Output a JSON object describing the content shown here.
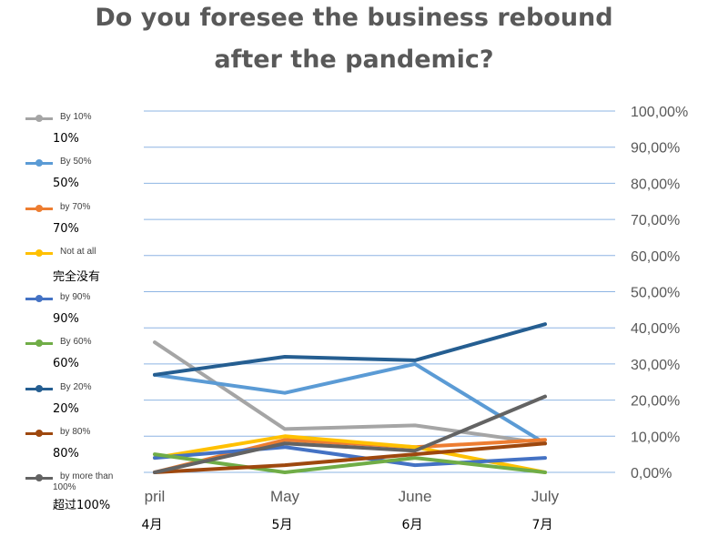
{
  "chart_data": {
    "type": "line",
    "title_lines": [
      "Do you foresee the business rebound",
      "after the pandemic?"
    ],
    "categories": [
      "pril",
      "May",
      "June",
      "July"
    ],
    "category_sublabels": [
      "4月",
      "5月",
      "6月",
      "7月"
    ],
    "y_axis_position": "right",
    "ylim": [
      0,
      1
    ],
    "yticks": [
      0,
      0.1,
      0.2,
      0.3,
      0.4,
      0.5,
      0.6,
      0.7,
      0.8,
      0.9,
      1.0
    ],
    "ytick_labels": [
      "0,00%",
      "10,00%",
      "20,00%",
      "30,00%",
      "40,00%",
      "50,00%",
      "60,00%",
      "70,00%",
      "80,00%",
      "90,00%",
      "100,00%"
    ],
    "grid": true,
    "legend_position": "left",
    "series": [
      {
        "name": "By 10%",
        "sublabel": "10%",
        "color": "#A5A5A5",
        "values": [
          0.36,
          0.12,
          0.13,
          0.08
        ]
      },
      {
        "name": "By 50%",
        "sublabel": "50%",
        "color": "#5B9BD5",
        "values": [
          0.27,
          0.22,
          0.3,
          0.08
        ]
      },
      {
        "name": "by 70%",
        "sublabel": "70%",
        "color": "#ED7D31",
        "values": [
          0.0,
          0.09,
          0.07,
          0.09
        ]
      },
      {
        "name": "Not at all",
        "sublabel": "完全没有",
        "color": "#FFC000",
        "values": [
          0.04,
          0.1,
          0.07,
          0.0
        ]
      },
      {
        "name": "by 90%",
        "sublabel": "90%",
        "color": "#4472C4",
        "values": [
          0.04,
          0.07,
          0.02,
          0.04
        ]
      },
      {
        "name": "By 60%",
        "sublabel": "60%",
        "color": "#70AD47",
        "values": [
          0.05,
          0.0,
          0.04,
          0.0
        ]
      },
      {
        "name": "By 20%",
        "sublabel": "20%",
        "color": "#255E91",
        "values": [
          0.27,
          0.32,
          0.31,
          0.41
        ]
      },
      {
        "name": "by 80%",
        "sublabel": "80%",
        "color": "#9E480E",
        "values": [
          0.0,
          0.02,
          0.05,
          0.08
        ]
      },
      {
        "name": "by more than 100%",
        "sublabel": "超过100%",
        "color": "#636363",
        "values": [
          0.0,
          0.08,
          0.06,
          0.21
        ]
      }
    ]
  }
}
